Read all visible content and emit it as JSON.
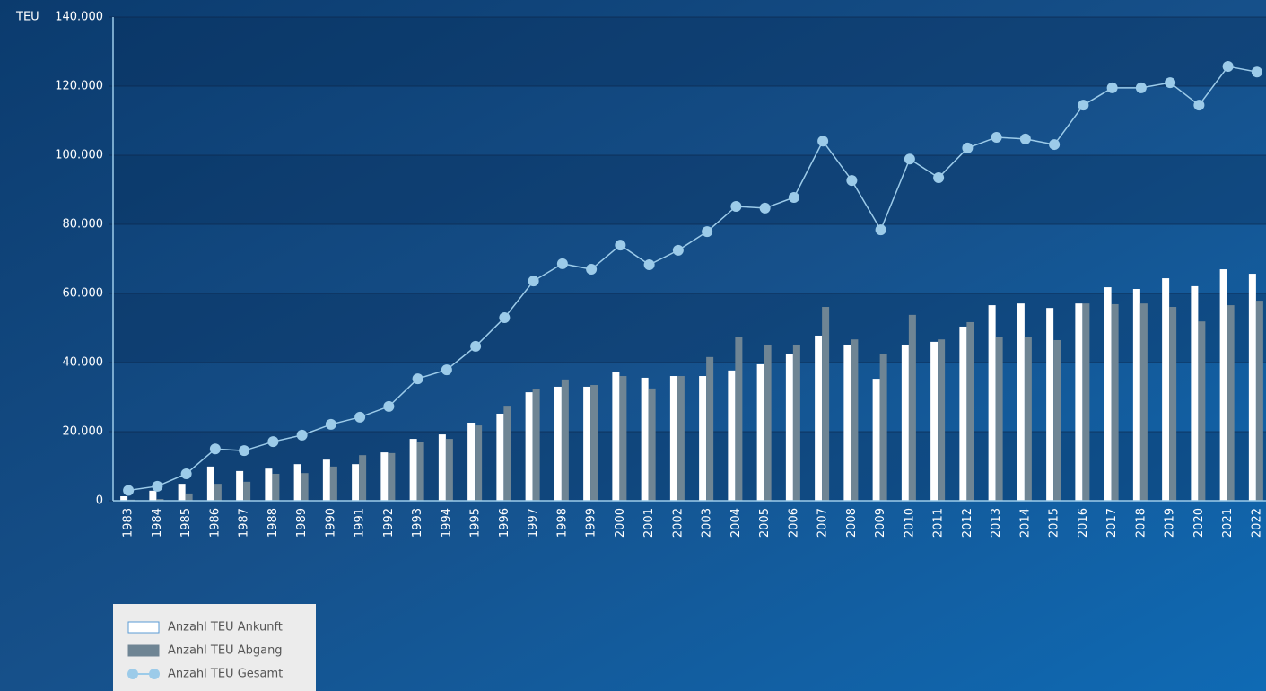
{
  "chart_data": {
    "type": "bar_line",
    "y_label": "TEU",
    "categories": [
      "1983",
      "1984",
      "1985",
      "1986",
      "1987",
      "1988",
      "1989",
      "1990",
      "1991",
      "1992",
      "1993",
      "1994",
      "1995",
      "1996",
      "1997",
      "1998",
      "1999",
      "2000",
      "2001",
      "2002",
      "2003",
      "2004",
      "2005",
      "2006",
      "2007",
      "2008",
      "2009",
      "2010",
      "2011",
      "2012",
      "2013",
      "2014",
      "2015",
      "2016",
      "2017",
      "2018",
      "2019",
      "2020",
      "2021",
      "2022"
    ],
    "series": [
      {
        "name": "Anzahl TEU Ankunft",
        "color": "#ffffff",
        "kind": "bar",
        "values": [
          1300,
          2900,
          4900,
          9900,
          8600,
          9300,
          10600,
          11900,
          10600,
          14000,
          17900,
          19200,
          22600,
          25200,
          31400,
          33000,
          33000,
          37400,
          35600,
          36100,
          36100,
          37700,
          39500,
          42600,
          47800,
          45200,
          35300,
          45200,
          46000,
          50400,
          56600,
          57100,
          55800,
          57100,
          61800,
          61300,
          64400,
          62100,
          67000,
          65700
        ]
      },
      {
        "name": "Anzahl TEU Abgang",
        "color": "#6f8594",
        "kind": "bar",
        "values": [
          300,
          500,
          2100,
          4900,
          5500,
          7800,
          8000,
          9900,
          13200,
          13800,
          17100,
          17900,
          21800,
          27500,
          32200,
          35100,
          33500,
          36100,
          32500,
          36100,
          41600,
          47300,
          45200,
          45200,
          56100,
          46700,
          42600,
          53800,
          46700,
          51700,
          47500,
          47300,
          46500,
          57100,
          56900,
          57100,
          56100,
          51900,
          56600,
          57900
        ]
      },
      {
        "name": "Anzahl TEU Gesamt",
        "color": "#9ccbe9",
        "kind": "line",
        "values": [
          3000,
          4200,
          7800,
          15000,
          14500,
          17100,
          19000,
          22100,
          24200,
          27300,
          35300,
          37900,
          44700,
          53000,
          63600,
          68600,
          67000,
          74000,
          68300,
          72500,
          77900,
          85200,
          84700,
          87800,
          104100,
          92700,
          78400,
          98900,
          93500,
          102100,
          105200,
          104700,
          103100,
          114500,
          119500,
          119500,
          121000,
          114500,
          125700,
          124100
        ]
      }
    ],
    "ylim": [
      0,
      140000
    ],
    "yticks": [
      0,
      {
        "value": 20000,
        "label": "20.000"
      },
      {
        "value": 40000,
        "label": "40.000"
      },
      {
        "value": 60000,
        "label": "60.000"
      },
      {
        "value": 80000,
        "label": "80.000"
      },
      {
        "value": 100000,
        "label": "100.000"
      },
      {
        "value": 120000,
        "label": "120.000"
      },
      {
        "value": 140000,
        "label": "140.000"
      }
    ],
    "grid": true
  }
}
